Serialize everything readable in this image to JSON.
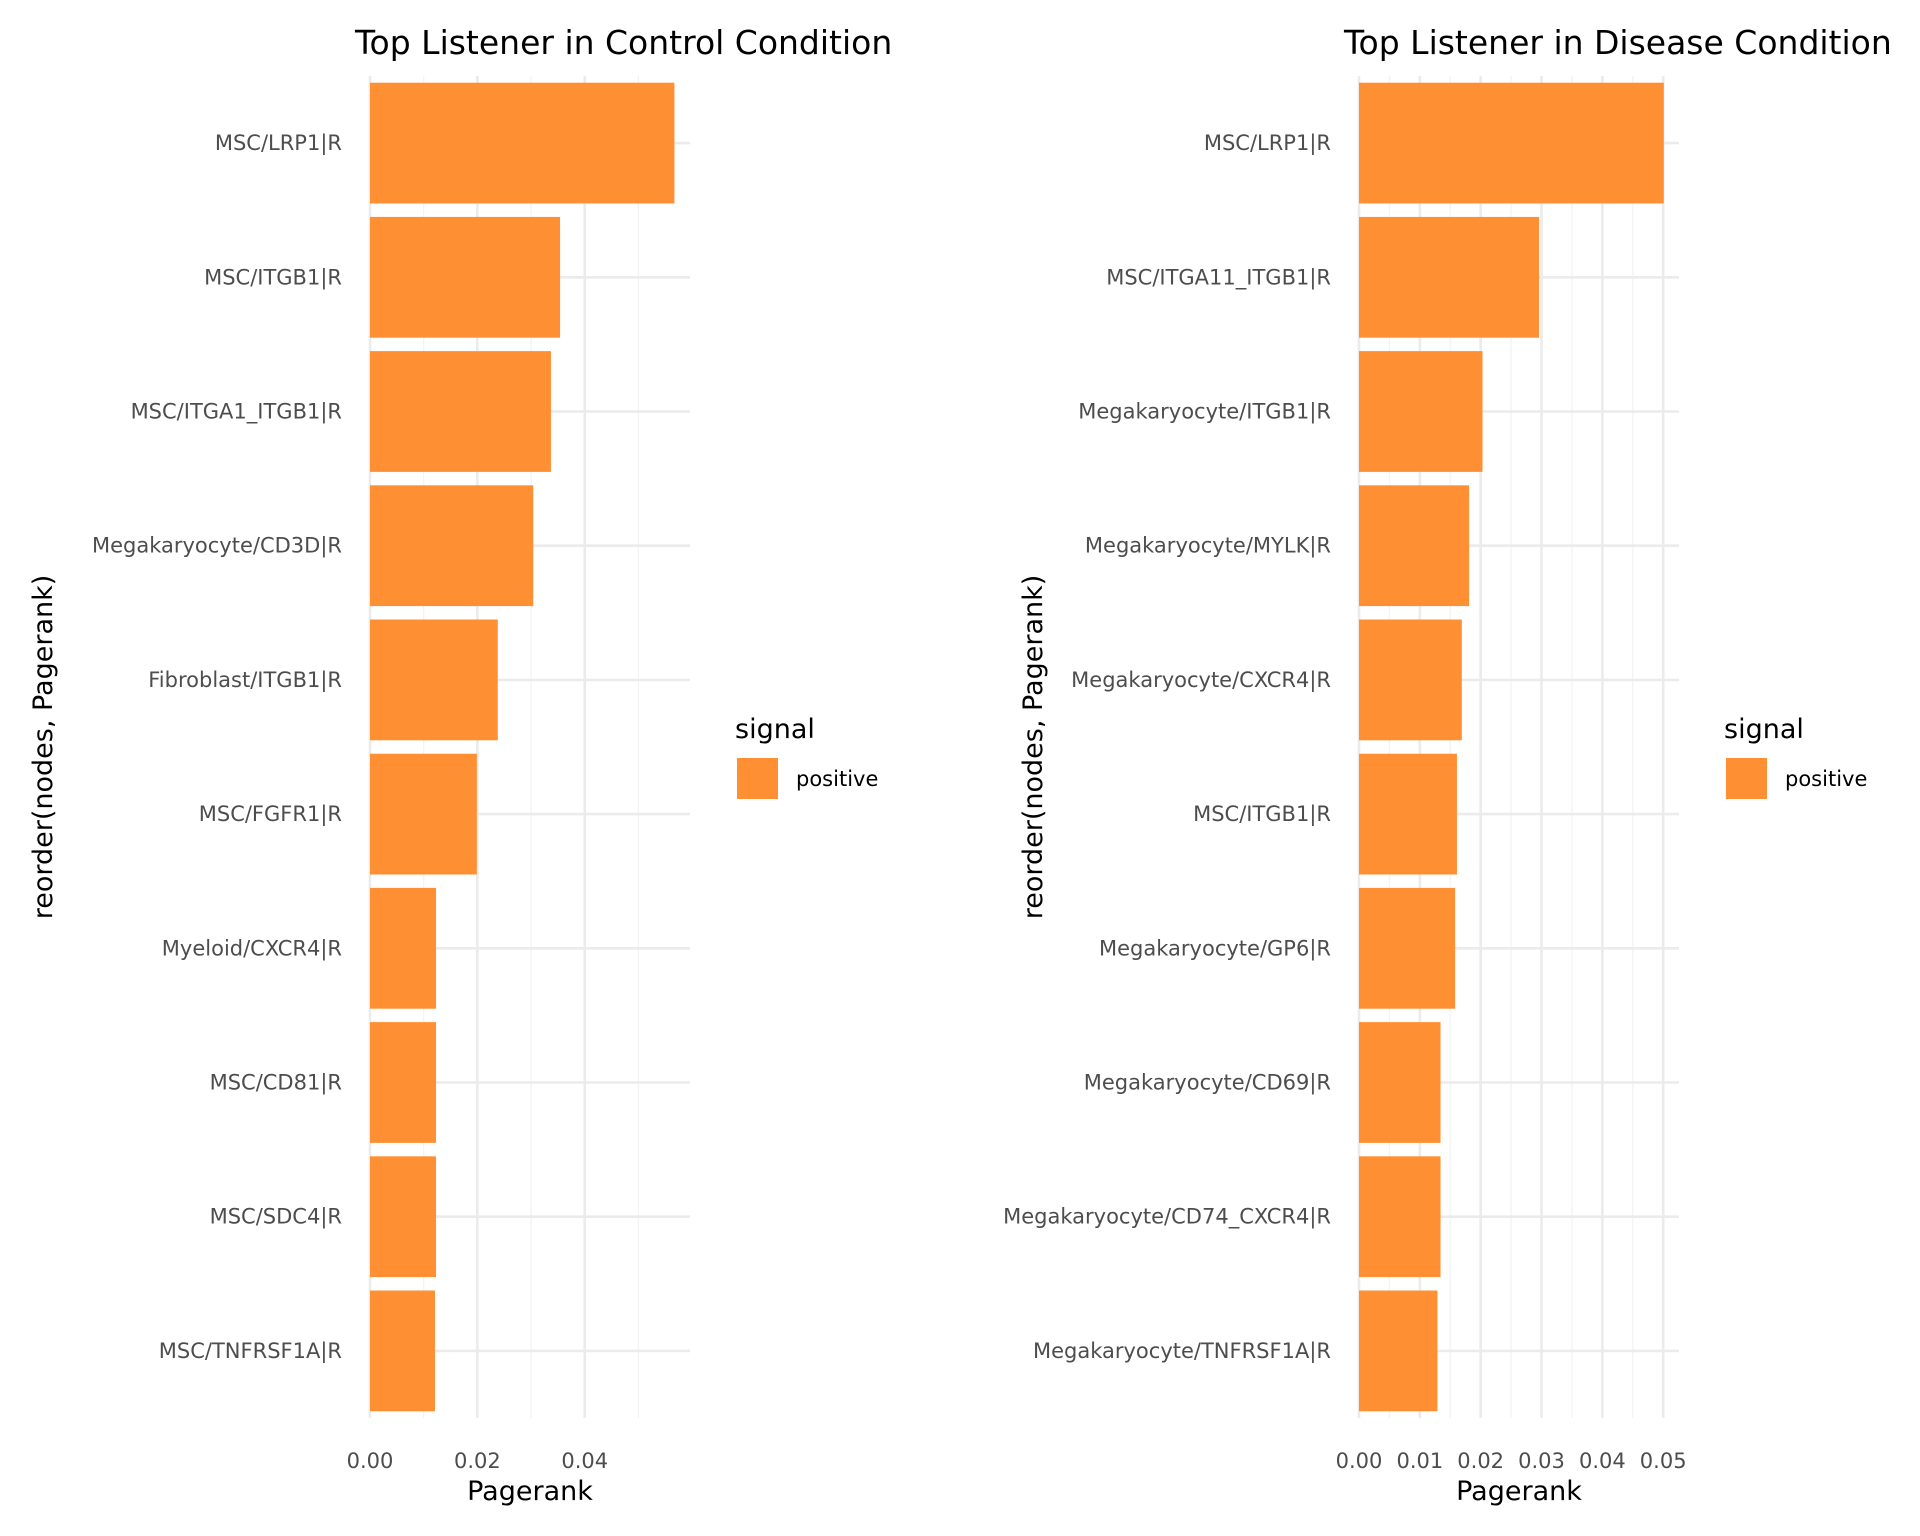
{
  "chart_data": [
    {
      "type": "bar",
      "orientation": "horizontal",
      "title": "Top Listener in Control Condition",
      "xlabel": "Pagerank",
      "ylabel": "reorder(nodes, Pagerank)",
      "xlim": [
        0,
        0.0596
      ],
      "xticks": [
        0.0,
        0.02,
        0.04
      ],
      "xtick_labels": [
        "0.00",
        "0.02",
        "0.04"
      ],
      "grid": true,
      "legend": {
        "title": "signal",
        "position": "right",
        "entries": [
          {
            "label": "positive",
            "color": "#FF8F33"
          }
        ]
      },
      "categories": [
        "MSC/LRP1|R",
        "MSC/ITGB1|R",
        "MSC/ITGA1_ITGB1|R",
        "Megakaryocyte/CD3D|R",
        "Fibroblast/ITGB1|R",
        "MSC/FGFR1|R",
        "Myeloid/CXCR4|R",
        "MSC/CD81|R",
        "MSC/SDC4|R",
        "MSC/TNFRSF1A|R"
      ],
      "series": [
        {
          "name": "positive",
          "color": "#FF8F33",
          "values": [
            0.0567,
            0.0354,
            0.0337,
            0.0304,
            0.0238,
            0.0199,
            0.0123,
            0.0123,
            0.0123,
            0.0121
          ]
        }
      ]
    },
    {
      "type": "bar",
      "orientation": "horizontal",
      "title": "Top Listener in Disease Condition",
      "xlabel": "Pagerank",
      "ylabel": "reorder(nodes, Pagerank)",
      "xlim": [
        0,
        0.0526
      ],
      "xticks": [
        0.0,
        0.01,
        0.02,
        0.03,
        0.04,
        0.05
      ],
      "xtick_labels": [
        "0.00",
        "0.01",
        "0.02",
        "0.03",
        "0.04",
        "0.05"
      ],
      "grid": true,
      "legend": {
        "title": "signal",
        "position": "right",
        "entries": [
          {
            "label": "positive",
            "color": "#FF8F33"
          }
        ]
      },
      "categories": [
        "MSC/LRP1|R",
        "MSC/ITGA11_ITGB1|R",
        "Megakaryocyte/ITGB1|R",
        "Megakaryocyte/MYLK|R",
        "Megakaryocyte/CXCR4|R",
        "MSC/ITGB1|R",
        "Megakaryocyte/GP6|R",
        "Megakaryocyte/CD69|R",
        "Megakaryocyte/CD74_CXCR4|R",
        "Megakaryocyte/TNFRSF1A|R"
      ],
      "series": [
        {
          "name": "positive",
          "color": "#FF8F33",
          "values": [
            0.0501,
            0.0296,
            0.0203,
            0.0181,
            0.0169,
            0.0161,
            0.0158,
            0.0134,
            0.0134,
            0.0129
          ]
        }
      ]
    }
  ]
}
